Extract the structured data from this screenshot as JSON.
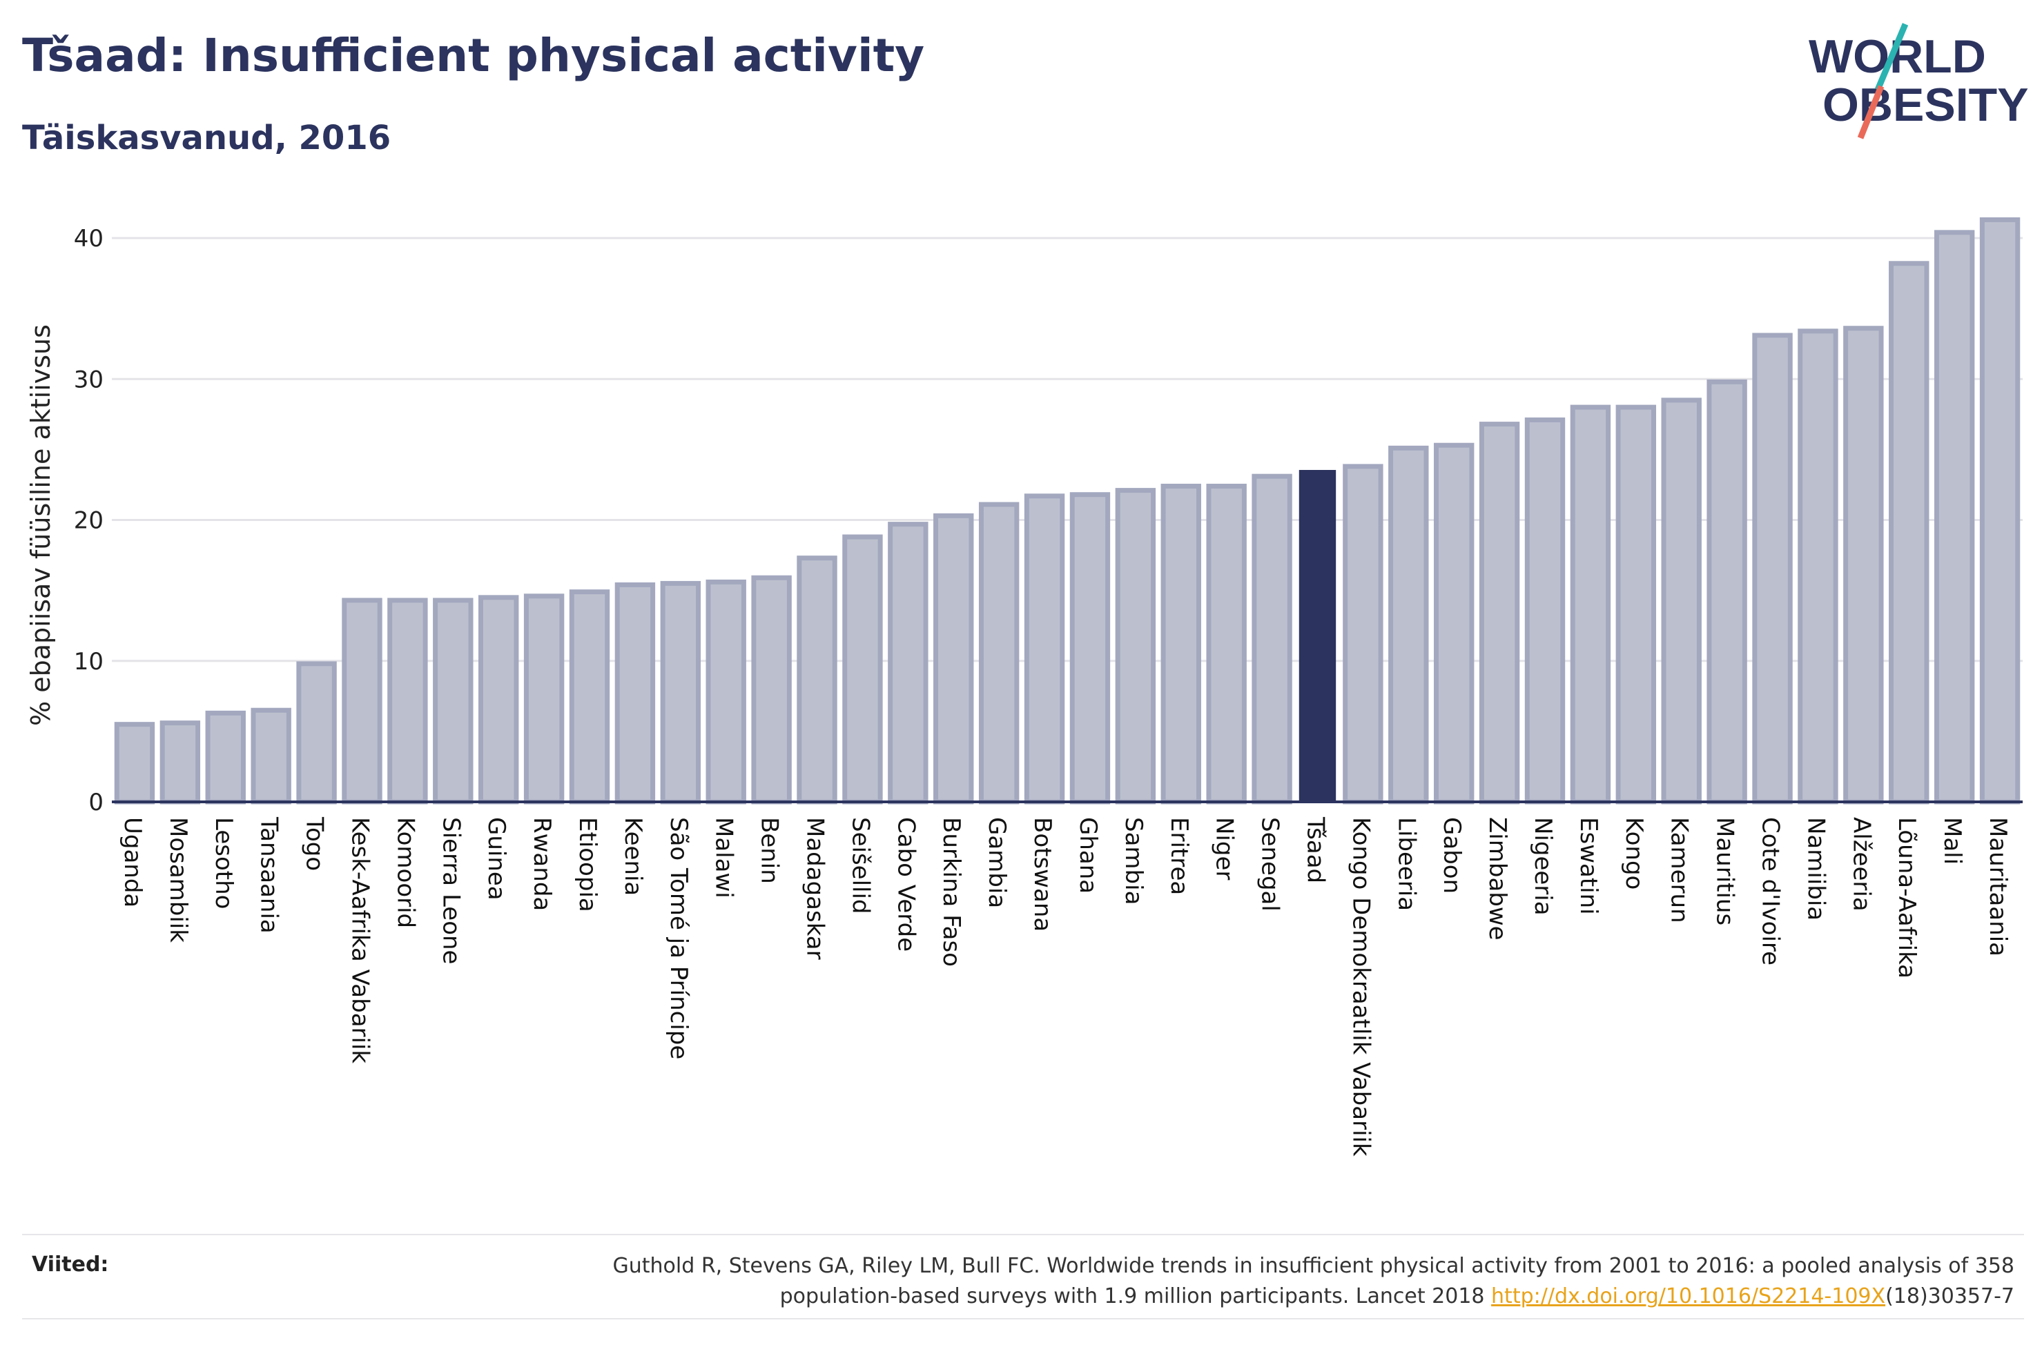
{
  "header": {
    "title": "Tšaad: Insufficient physical activity",
    "subtitle": "Täiskasvanud, 2016"
  },
  "logo": {
    "line1": "WORLD",
    "line2": "OBESITY",
    "colors": {
      "text": "#2b335e",
      "slash_top": "#2ab3b1",
      "slash_bottom": "#ea6a5a"
    }
  },
  "colors": {
    "bar_fill": "#bcc0ce",
    "bar_stroke": "#a3a8bf",
    "highlight": "#2b335e",
    "grid": "#e4e4e8",
    "axis": "#2b335e"
  },
  "chart_data": {
    "type": "bar",
    "title": "",
    "xlabel": "",
    "ylabel": "% ebapiisav füüsiline aktiivsus",
    "ylim": [
      0,
      42
    ],
    "yticks": [
      0,
      10,
      20,
      30,
      40
    ],
    "grid": true,
    "highlight_category": "Tšaad",
    "categories": [
      "Uganda",
      "Mosambiik",
      "Lesotho",
      "Tansaania",
      "Togo",
      "Kesk-Aafrika Vabariik",
      "Komoorid",
      "Sierra Leone",
      "Guinea",
      "Rwanda",
      "Etioopia",
      "Keenia",
      "São Tomé ja Príncipe",
      "Malawi",
      "Benin",
      "Madagaskar",
      "Seišellid",
      "Cabo Verde",
      "Burkina Faso",
      "Gambia",
      "Botswana",
      "Ghana",
      "Sambia",
      "Eritrea",
      "Niger",
      "Senegal",
      "Tšaad",
      "Kongo Demokraatlik Vabariik",
      "Libeeria",
      "Gabon",
      "Zimbabwe",
      "Nigeeria",
      "Eswatini",
      "Kongo",
      "Kamerun",
      "Mauritius",
      "Cote d'Ivoire",
      "Namiibia",
      "Alžeeria",
      "Lõuna-Aafrika",
      "Mali",
      "Mauritaania"
    ],
    "values": [
      5.5,
      5.6,
      6.3,
      6.5,
      9.8,
      14.3,
      14.3,
      14.3,
      14.5,
      14.6,
      14.9,
      15.4,
      15.5,
      15.6,
      15.9,
      17.3,
      18.8,
      19.7,
      20.3,
      21.1,
      21.7,
      21.8,
      22.1,
      22.4,
      22.4,
      23.1,
      23.5,
      23.8,
      25.1,
      25.3,
      26.8,
      27.1,
      28.0,
      28.0,
      28.5,
      29.8,
      33.1,
      33.4,
      33.6,
      38.2,
      40.4,
      41.3
    ]
  },
  "references": {
    "label": "Viited:",
    "line1": "Guthold R, Stevens GA, Riley LM, Bull FC. Worldwide trends in insufficient physical activity from 2001 to 2016: a pooled analysis of 358",
    "line2_prefix": "population-based surveys with 1.9 million participants. Lancet 2018 ",
    "link": "http://dx.doi.org/10.1016/S2214-109X",
    "line2_suffix": "(18)30357-7"
  }
}
